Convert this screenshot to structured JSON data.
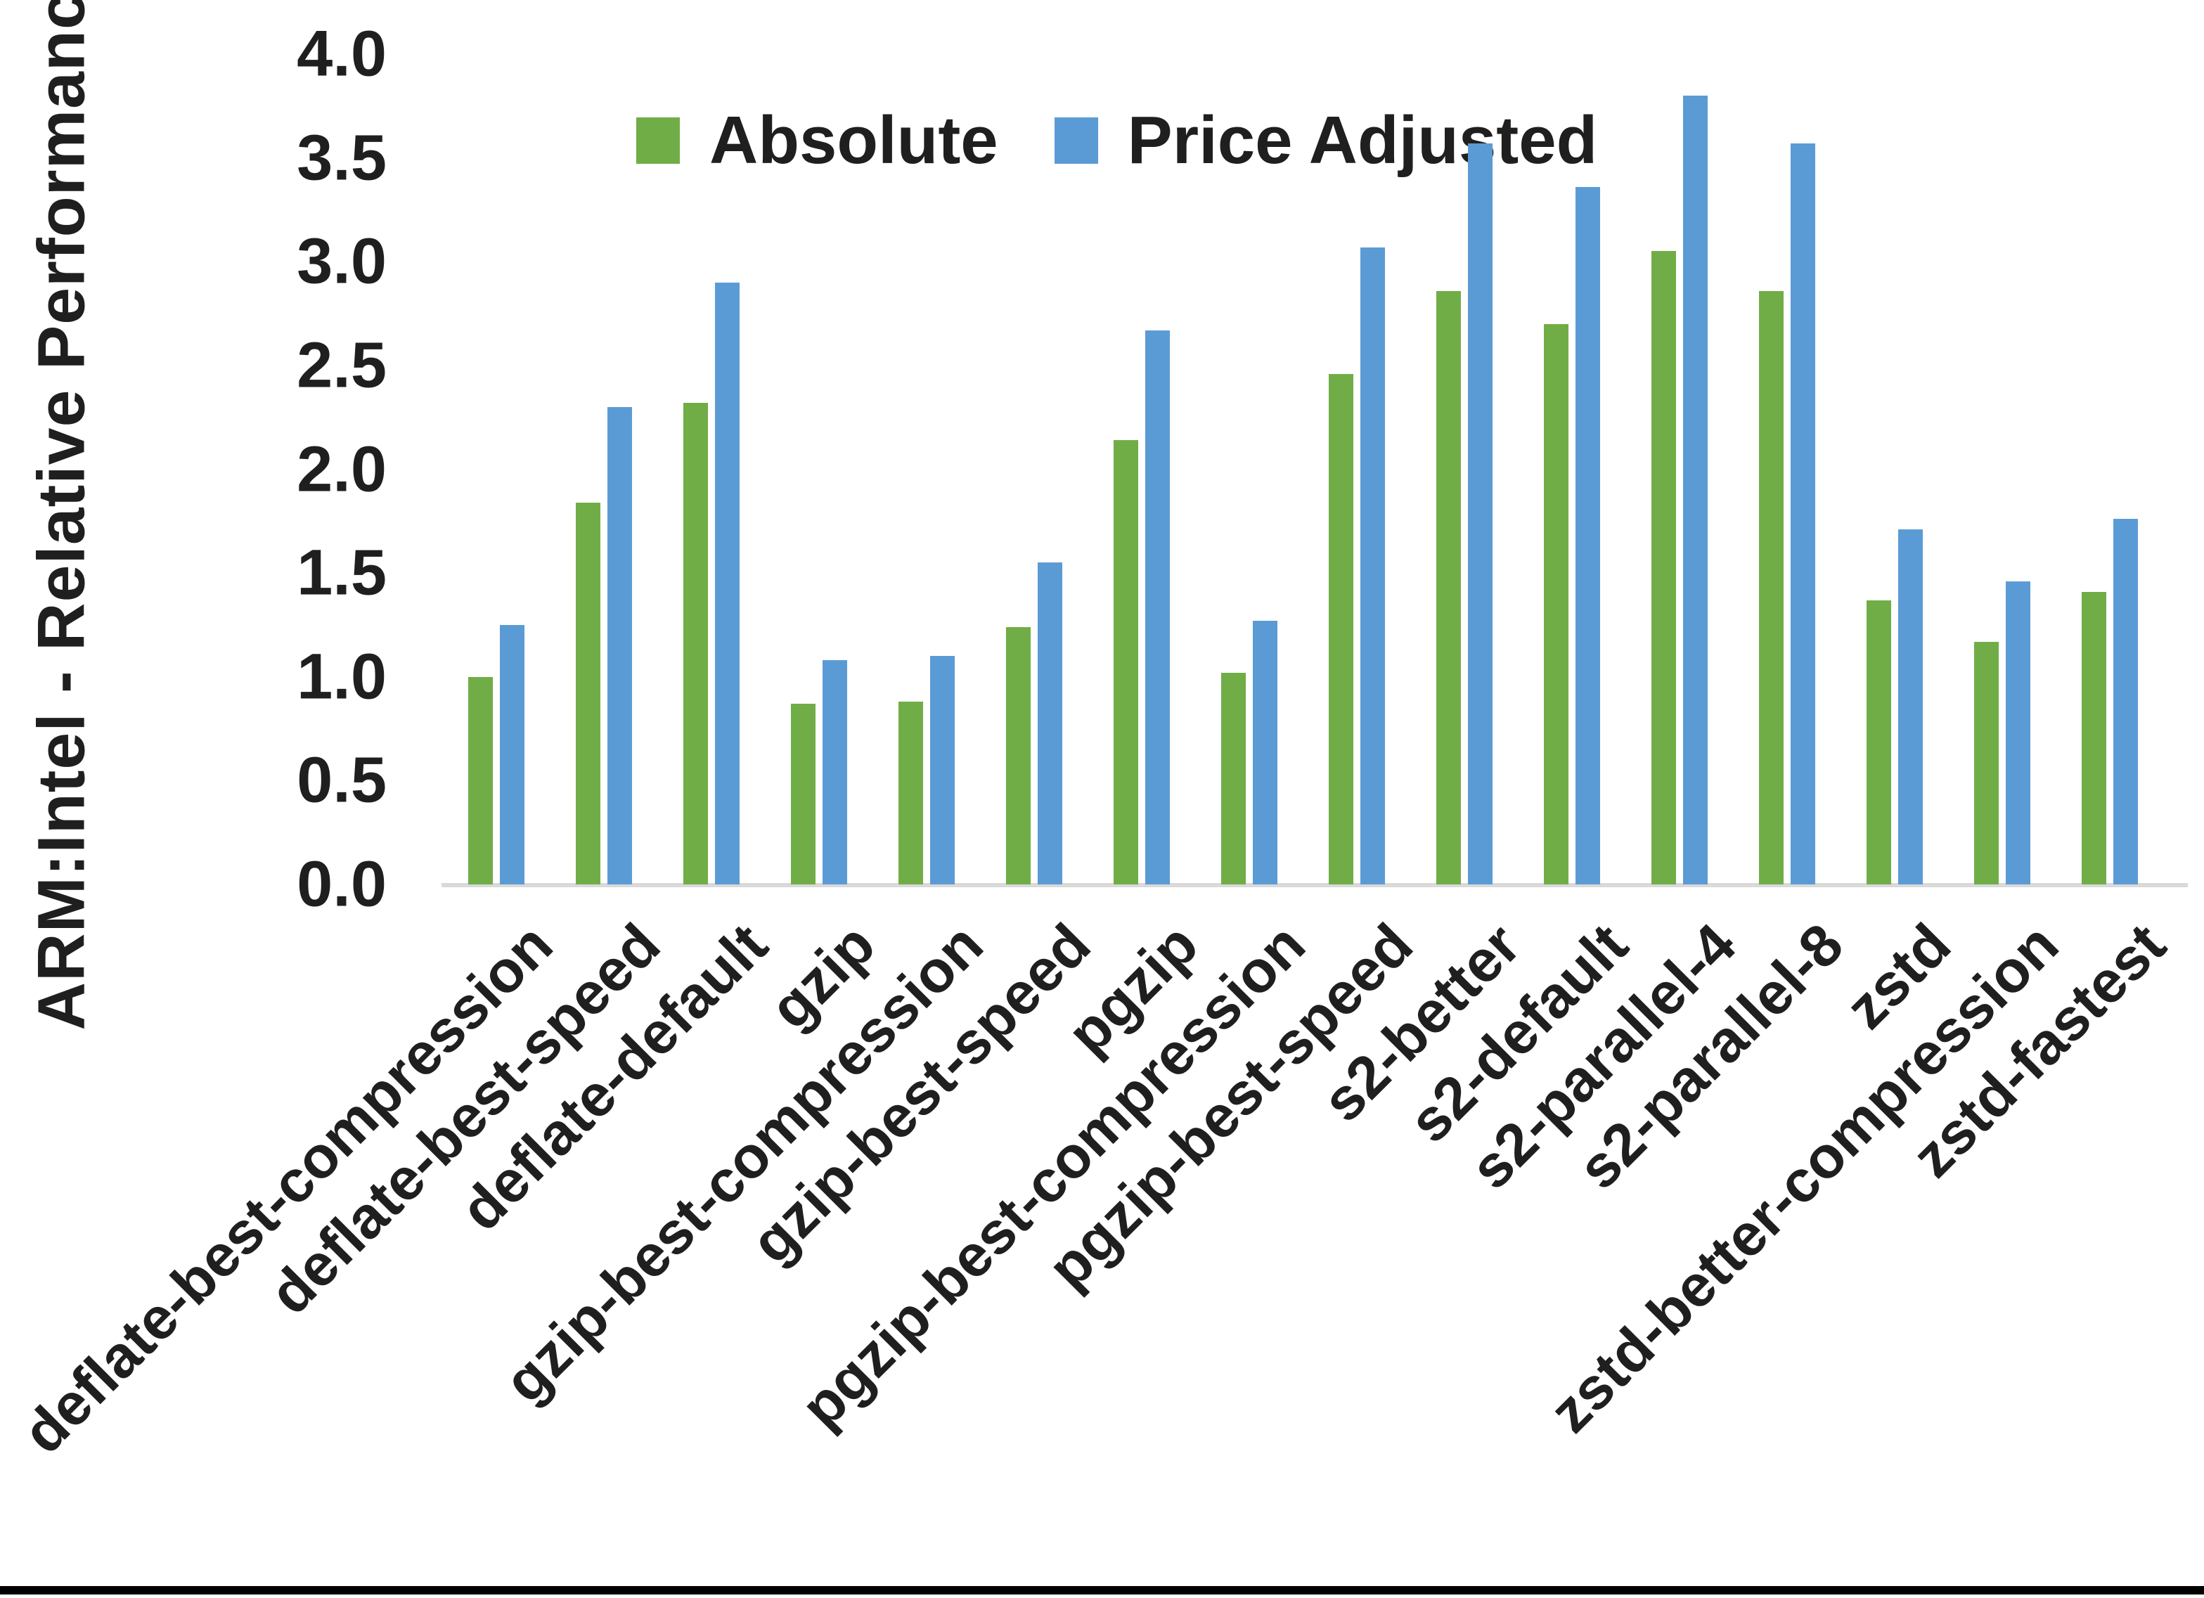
{
  "chart_data": {
    "type": "bar",
    "title": "",
    "ylabel": "ARM:Intel - Relative Performance",
    "xlabel": "",
    "ylim": [
      0.0,
      4.0
    ],
    "ytick_step": 0.5,
    "yticks": [
      "4.0",
      "3.5",
      "3.0",
      "2.5",
      "2.0",
      "1.5",
      "1.0",
      "0.5",
      "0.0"
    ],
    "grid": "off",
    "legend_position": "top-center",
    "categories": [
      "deflate-best-compression",
      "deflate-best-speed",
      "deflate-default",
      "gzip",
      "gzip-best-compression",
      "gzip-best-speed",
      "pgzip",
      "pgzip-best-compression",
      "pgzip-best-speed",
      "s2-better",
      "s2-default",
      "s2-parallel-4",
      "s2-parallel-8",
      "zstd",
      "zstd-better-compression",
      "zstd-fastest"
    ],
    "series": [
      {
        "name": "Absolute",
        "color": "#70AD47",
        "values": [
          1.0,
          1.84,
          2.32,
          0.87,
          0.88,
          1.24,
          2.14,
          1.02,
          2.46,
          2.86,
          2.7,
          3.05,
          2.86,
          1.37,
          1.17,
          1.41
        ]
      },
      {
        "name": "Price Adjusted",
        "color": "#5B9BD5",
        "values": [
          1.25,
          2.3,
          2.9,
          1.08,
          1.1,
          1.55,
          2.67,
          1.27,
          3.07,
          3.57,
          3.36,
          3.8,
          3.57,
          1.71,
          1.46,
          1.76
        ]
      }
    ],
    "axis_line_color": "#D9D9D9",
    "text_color": "#1F1F1F"
  }
}
